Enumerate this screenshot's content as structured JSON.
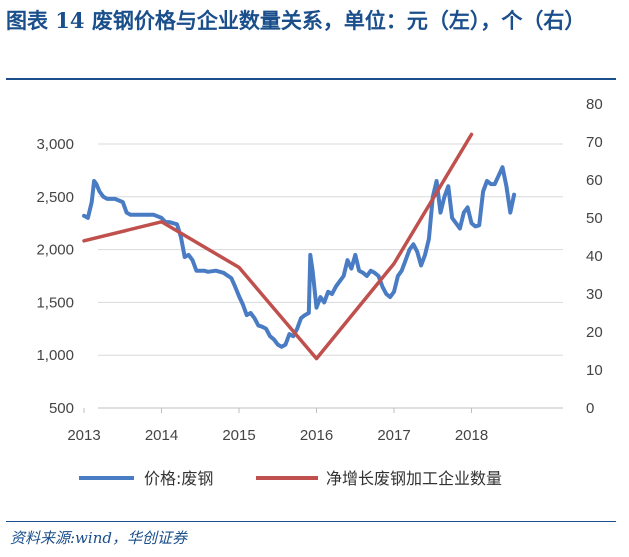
{
  "title": "图表 14  废钢价格与企业数量关系，单位：元（左），个（右）",
  "source": "资料来源:wind，华创证券",
  "colors": {
    "price": "#4a7cc4",
    "count": "#c0504d",
    "accent": "#1a4f8b",
    "grid": "#d9d9d9"
  },
  "chart_data": {
    "type": "line",
    "x_ticks": [
      "2013",
      "2014",
      "2015",
      "2016",
      "2017",
      "2018"
    ],
    "y_left_ticks": [
      "3,000",
      "2,500",
      "2,000",
      "1,500",
      "1,000",
      "500"
    ],
    "y_right_ticks": [
      "80",
      "70",
      "60",
      "50",
      "40",
      "30",
      "20",
      "10",
      "0"
    ],
    "y_left_range": [
      500,
      3000
    ],
    "y_right_range": [
      0,
      80
    ],
    "x_range": [
      2013,
      2019
    ],
    "grid": true,
    "legend_position": "bottom",
    "series": [
      {
        "name": "价格:废钢",
        "axis": "left",
        "x": [
          2013.0,
          2013.05,
          2013.1,
          2013.13,
          2013.16,
          2013.2,
          2013.25,
          2013.3,
          2013.4,
          2013.5,
          2013.55,
          2013.6,
          2013.7,
          2013.8,
          2013.9,
          2014.0,
          2014.05,
          2014.1,
          2014.2,
          2014.25,
          2014.3,
          2014.35,
          2014.4,
          2014.45,
          2014.5,
          2014.55,
          2014.6,
          2014.7,
          2014.8,
          2014.9,
          2014.95,
          2015.0,
          2015.05,
          2015.1,
          2015.15,
          2015.2,
          2015.25,
          2015.3,
          2015.35,
          2015.4,
          2015.45,
          2015.5,
          2015.55,
          2015.6,
          2015.65,
          2015.7,
          2015.75,
          2015.8,
          2015.85,
          2015.9,
          2015.92,
          2015.95,
          2016.0,
          2016.05,
          2016.1,
          2016.15,
          2016.2,
          2016.25,
          2016.3,
          2016.35,
          2016.4,
          2016.45,
          2016.5,
          2016.55,
          2016.6,
          2016.65,
          2016.7,
          2016.75,
          2016.8,
          2016.85,
          2016.9,
          2016.95,
          2017.0,
          2017.05,
          2017.1,
          2017.15,
          2017.2,
          2017.25,
          2017.3,
          2017.35,
          2017.4,
          2017.45,
          2017.5,
          2017.55,
          2017.6,
          2017.65,
          2017.7,
          2017.75,
          2017.8,
          2017.85,
          2017.9,
          2017.95,
          2018.0,
          2018.05,
          2018.1,
          2018.15,
          2018.2,
          2018.25,
          2018.3,
          2018.35,
          2018.4,
          2018.45,
          2018.5,
          2018.55
        ],
        "values": [
          2320,
          2300,
          2450,
          2650,
          2620,
          2550,
          2500,
          2480,
          2480,
          2450,
          2350,
          2330,
          2330,
          2330,
          2330,
          2300,
          2260,
          2260,
          2240,
          2120,
          1930,
          1950,
          1900,
          1800,
          1800,
          1800,
          1790,
          1800,
          1780,
          1730,
          1650,
          1560,
          1480,
          1380,
          1400,
          1350,
          1280,
          1270,
          1250,
          1180,
          1150,
          1100,
          1080,
          1100,
          1200,
          1180,
          1250,
          1350,
          1380,
          1400,
          1950,
          1800,
          1450,
          1550,
          1500,
          1600,
          1580,
          1650,
          1700,
          1750,
          1900,
          1820,
          1950,
          1800,
          1780,
          1750,
          1800,
          1780,
          1750,
          1650,
          1580,
          1550,
          1600,
          1750,
          1800,
          1900,
          2000,
          2050,
          1980,
          1850,
          1950,
          2100,
          2500,
          2650,
          2350,
          2500,
          2600,
          2300,
          2250,
          2200,
          2350,
          2400,
          2250,
          2220,
          2230,
          2550,
          2650,
          2620,
          2620,
          2700,
          2780,
          2600,
          2350,
          2520
        ]
      },
      {
        "name": "净增长废钢加工企业数量",
        "axis": "right",
        "x": [
          2013.0,
          2014.0,
          2015.0,
          2016.0,
          2017.0,
          2018.0
        ],
        "values": [
          44,
          49,
          37,
          13,
          38,
          72
        ]
      }
    ]
  }
}
